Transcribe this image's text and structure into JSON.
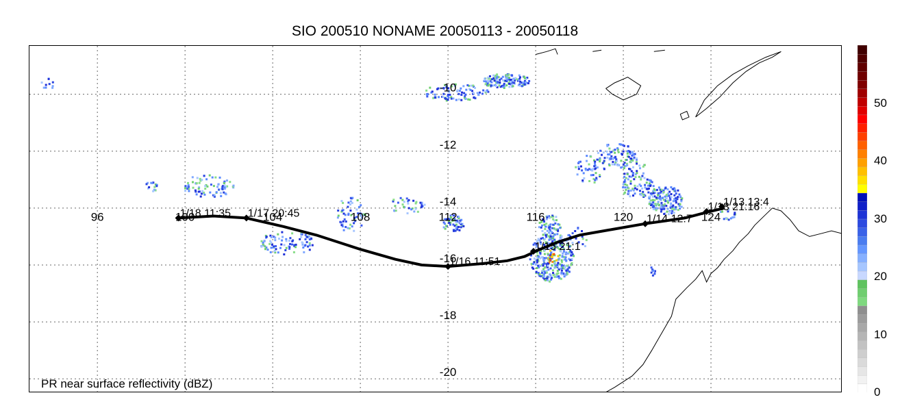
{
  "title": "SIO 200510 NONAME 20050113 - 20050118",
  "caption": "PR near surface reflectivity (dBZ)",
  "map": {
    "lon_range": [
      92.9,
      130.0
    ],
    "lat_range": [
      -20.5,
      -8.3
    ],
    "lon_ticks": [
      "96",
      "100",
      "104",
      "108",
      "112",
      "116",
      "120",
      "124"
    ],
    "lat_ticks": [
      "-10",
      "-12",
      "-14",
      "-16",
      "-18",
      "-20"
    ],
    "land_color": "#000000"
  },
  "track": {
    "points": [
      {
        "lon": 124.6,
        "lat": -14.0
      },
      {
        "lon": 123.8,
        "lat": -14.15
      },
      {
        "lon": 122.8,
        "lat": -14.35
      },
      {
        "lon": 121.9,
        "lat": -14.45
      },
      {
        "lon": 121.0,
        "lat": -14.55
      },
      {
        "lon": 119.5,
        "lat": -14.75
      },
      {
        "lon": 118.0,
        "lat": -14.95
      },
      {
        "lon": 117.0,
        "lat": -15.2
      },
      {
        "lon": 116.2,
        "lat": -15.45
      },
      {
        "lon": 115.5,
        "lat": -15.7
      },
      {
        "lon": 114.7,
        "lat": -15.85
      },
      {
        "lon": 113.6,
        "lat": -15.95
      },
      {
        "lon": 112.0,
        "lat": -16.05
      },
      {
        "lon": 110.8,
        "lat": -16.0
      },
      {
        "lon": 109.6,
        "lat": -15.8
      },
      {
        "lon": 108.0,
        "lat": -15.45
      },
      {
        "lon": 106.0,
        "lat": -14.95
      },
      {
        "lon": 104.5,
        "lat": -14.65
      },
      {
        "lon": 102.8,
        "lat": -14.35
      },
      {
        "lon": 101.3,
        "lat": -14.28
      },
      {
        "lon": 99.7,
        "lat": -14.35
      }
    ],
    "markers": [
      {
        "lon": 124.5,
        "lat": -13.95,
        "label": "1/13 13:4"
      },
      {
        "lon": 123.8,
        "lat": -14.12,
        "label": "1/13 21:16"
      },
      {
        "lon": 121.0,
        "lat": -14.55,
        "label": "1/14 12:7"
      },
      {
        "lon": 115.9,
        "lat": -15.52,
        "label": "1/15 21:1"
      },
      {
        "lon": 112.0,
        "lat": -16.05,
        "label": "1/16 11:51"
      },
      {
        "lon": 102.8,
        "lat": -14.35,
        "label": "1/17 20:45"
      },
      {
        "lon": 99.7,
        "lat": -14.35,
        "label": "1/18 11:35"
      }
    ]
  },
  "colorbar": {
    "min": 0,
    "max": 60,
    "tick_labels": [
      "0",
      "10",
      "20",
      "30",
      "40",
      "50"
    ],
    "tick_values": [
      0,
      10,
      20,
      30,
      40,
      50
    ],
    "colors": [
      "#ffffff",
      "#f2f2f2",
      "#e6e6e6",
      "#dadada",
      "#cecece",
      "#c2c2c2",
      "#b5b5b5",
      "#a8a8a8",
      "#9c9c9c",
      "#8f8f8f",
      "#7fd97f",
      "#6fce6f",
      "#5fc35f",
      "#c8d8ff",
      "#a6c6ff",
      "#86b0ff",
      "#6496ff",
      "#4a7cf0",
      "#3a62e8",
      "#2c4ae0",
      "#1e34d6",
      "#1020c8",
      "#0010b8",
      "#ffff00",
      "#ffe000",
      "#ffc000",
      "#ffa000",
      "#ff8000",
      "#ff6000",
      "#ff4000",
      "#ff2000",
      "#ff0000",
      "#e00000",
      "#c00000",
      "#a00000",
      "#800000",
      "#700000",
      "#600000",
      "#500000",
      "#400000"
    ]
  },
  "rain_palette": [
    "#2030d8",
    "#2844e0",
    "#3c5cf0",
    "#5a88ff",
    "#7fa8ff",
    "#a6c6ff",
    "#70d070",
    "#88dd88"
  ],
  "rain_core_palette": [
    "#ff8c00",
    "#ff5000",
    "#ffd000",
    "#e02020"
  ],
  "rain_cells": [
    {
      "lon": 114.6,
      "lat": -9.5,
      "rx": 1.1,
      "ry": 0.25,
      "n": 140
    },
    {
      "lon": 112.3,
      "lat": -9.9,
      "rx": 1.5,
      "ry": 0.3,
      "n": 90
    },
    {
      "lon": 116.7,
      "lat": -15.7,
      "rx": 1.0,
      "ry": 0.85,
      "n": 320,
      "core": true
    },
    {
      "lon": 116.6,
      "lat": -14.6,
      "rx": 0.5,
      "ry": 0.4,
      "n": 70
    },
    {
      "lon": 112.2,
      "lat": -14.5,
      "rx": 0.5,
      "ry": 0.3,
      "n": 55,
      "core": true
    },
    {
      "lon": 121.9,
      "lat": -13.7,
      "rx": 0.8,
      "ry": 0.5,
      "n": 160
    },
    {
      "lon": 120.6,
      "lat": -13.2,
      "rx": 0.8,
      "ry": 0.4,
      "n": 70
    },
    {
      "lon": 119.6,
      "lat": -12.1,
      "rx": 0.9,
      "ry": 0.4,
      "n": 80
    },
    {
      "lon": 120.4,
      "lat": -12.6,
      "rx": 0.6,
      "ry": 0.4,
      "n": 40
    },
    {
      "lon": 118.4,
      "lat": -12.6,
      "rx": 0.7,
      "ry": 0.5,
      "n": 50
    },
    {
      "lon": 101.0,
      "lat": -13.2,
      "rx": 1.2,
      "ry": 0.4,
      "n": 80
    },
    {
      "lon": 104.6,
      "lat": -15.2,
      "rx": 1.3,
      "ry": 0.4,
      "n": 90
    },
    {
      "lon": 107.5,
      "lat": -14.2,
      "rx": 0.7,
      "ry": 0.6,
      "n": 55
    },
    {
      "lon": 110.0,
      "lat": -13.9,
      "rx": 0.9,
      "ry": 0.3,
      "n": 35
    },
    {
      "lon": 121.3,
      "lat": -16.2,
      "rx": 0.12,
      "ry": 0.2,
      "n": 10
    },
    {
      "lon": 117.9,
      "lat": -15.0,
      "rx": 0.5,
      "ry": 0.4,
      "n": 20
    },
    {
      "lon": 124.7,
      "lat": -14.2,
      "rx": 0.4,
      "ry": 0.2,
      "n": 15
    },
    {
      "lon": 93.7,
      "lat": -9.6,
      "rx": 0.3,
      "ry": 0.2,
      "n": 10
    },
    {
      "lon": 98.4,
      "lat": -13.2,
      "rx": 0.3,
      "ry": 0.2,
      "n": 15
    }
  ],
  "coastlines": [
    [
      [
        118.9,
        -20.6
      ],
      [
        119.6,
        -20.3
      ],
      [
        120.4,
        -19.9
      ],
      [
        120.9,
        -19.5
      ],
      [
        121.3,
        -19.0
      ],
      [
        121.6,
        -18.6
      ],
      [
        121.9,
        -18.2
      ],
      [
        122.2,
        -17.8
      ],
      [
        122.4,
        -17.2
      ],
      [
        122.9,
        -16.8
      ],
      [
        123.3,
        -16.5
      ],
      [
        123.6,
        -16.2
      ],
      [
        123.8,
        -16.6
      ],
      [
        124.0,
        -16.3
      ],
      [
        124.3,
        -16.1
      ],
      [
        124.6,
        -15.8
      ],
      [
        125.0,
        -15.5
      ],
      [
        125.3,
        -15.2
      ],
      [
        125.7,
        -14.9
      ],
      [
        126.0,
        -14.6
      ],
      [
        126.4,
        -14.3
      ],
      [
        126.8,
        -14.0
      ],
      [
        127.2,
        -14.1
      ],
      [
        127.6,
        -14.4
      ],
      [
        128.0,
        -14.8
      ],
      [
        128.5,
        -15.0
      ],
      [
        129.0,
        -14.9
      ],
      [
        129.5,
        -14.8
      ],
      [
        130.0,
        -14.9
      ]
    ],
    [
      [
        123.3,
        -10.8
      ],
      [
        123.8,
        -10.5
      ],
      [
        124.4,
        -10.1
      ],
      [
        125.0,
        -9.6
      ],
      [
        125.6,
        -9.2
      ],
      [
        126.2,
        -8.9
      ],
      [
        126.8,
        -8.7
      ],
      [
        127.2,
        -8.5
      ],
      [
        126.5,
        -8.7
      ],
      [
        125.7,
        -9.0
      ],
      [
        125.0,
        -9.3
      ],
      [
        124.3,
        -9.7
      ],
      [
        123.7,
        -10.2
      ],
      [
        123.3,
        -10.8
      ]
    ],
    [
      [
        122.6,
        -10.7
      ],
      [
        122.9,
        -10.6
      ],
      [
        123.0,
        -10.8
      ],
      [
        122.7,
        -10.9
      ],
      [
        122.6,
        -10.7
      ]
    ],
    [
      [
        119.2,
        -9.8
      ],
      [
        119.6,
        -9.6
      ],
      [
        120.2,
        -9.4
      ],
      [
        120.8,
        -9.7
      ],
      [
        120.6,
        -10.0
      ],
      [
        120.0,
        -10.2
      ],
      [
        119.5,
        -10.0
      ],
      [
        119.2,
        -9.8
      ]
    ],
    [
      [
        116.0,
        -8.6
      ],
      [
        116.5,
        -8.5
      ],
      [
        116.9,
        -8.4
      ],
      [
        117.0,
        -8.6
      ]
    ],
    [
      [
        118.6,
        -8.5
      ],
      [
        119.0,
        -8.45
      ]
    ],
    [
      [
        121.4,
        -8.5
      ],
      [
        121.9,
        -8.45
      ]
    ]
  ]
}
